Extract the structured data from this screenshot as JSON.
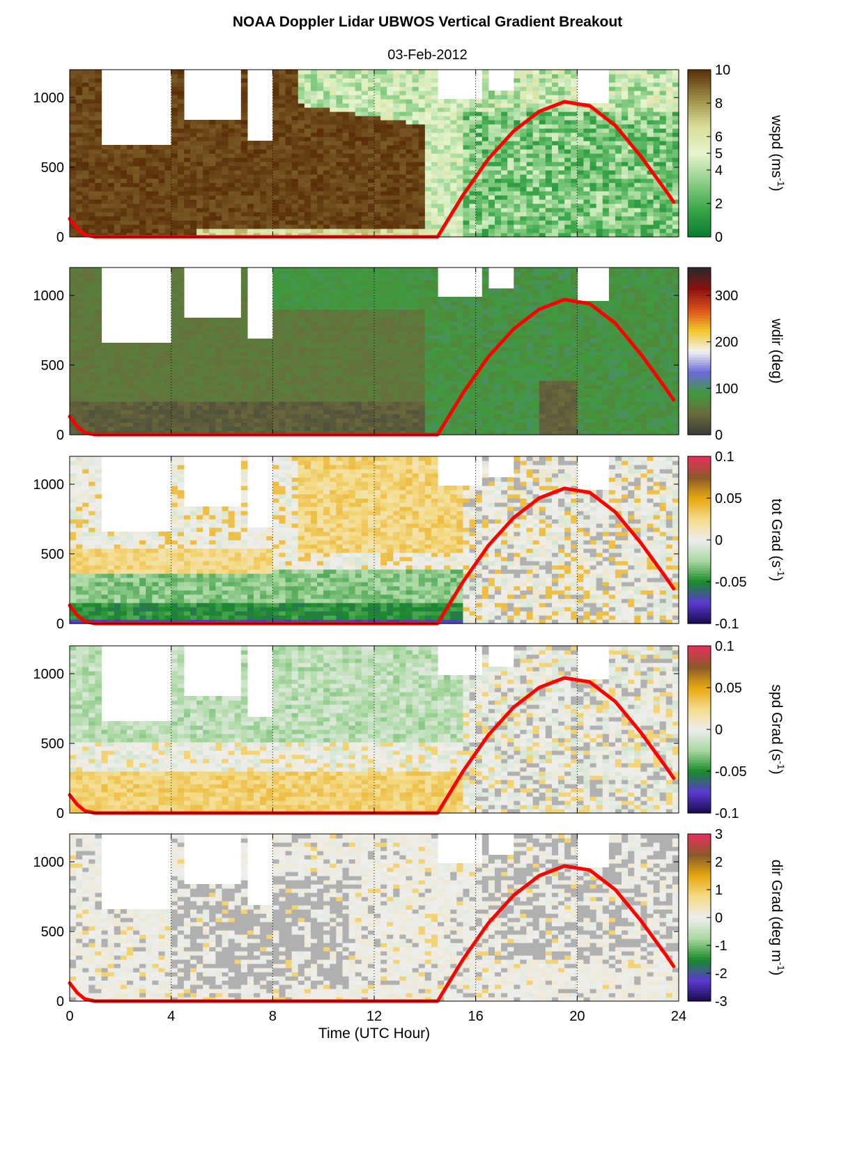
{
  "figure": {
    "title": "NOAA Doppler Lidar  UBWOS  Vertical Gradient Breakout",
    "subtitle": "03-Feb-2012",
    "xlabel": "Time (UTC Hour)"
  },
  "chart_data": [
    {
      "type": "heatmap",
      "id": "wspd",
      "colorbar_label": "wspd (ms",
      "colorbar_label_sup": "-1",
      "colorbar_label_suffix": ")",
      "x_range": [
        0,
        24
      ],
      "y_range": [
        0,
        1200
      ],
      "x_ticks": [
        0,
        4,
        8,
        12,
        16,
        20,
        24
      ],
      "y_ticks": [
        0,
        500,
        1000
      ],
      "clim": [
        0,
        10
      ],
      "colorbar_ticks": [
        0,
        2,
        4,
        5,
        6,
        8,
        10
      ],
      "colormap": [
        "#0a7a2e",
        "#3aa649",
        "#8fd08a",
        "#e6f5cf",
        "#d8dc96",
        "#9a8a45",
        "#5a2e08"
      ],
      "summary": "Strong winds (~10 m/s) below ~900 m from 0-14 UTC; weaker winds (2-6 m/s) after 14 UTC; lighter speeds near the surface 5-14 UTC",
      "sun_curve": {
        "x": [
          0,
          0.3,
          0.6,
          1,
          14.5,
          15.5,
          16.5,
          17.5,
          18.5,
          19.5,
          20.5,
          21.5,
          22.5,
          23.5,
          23.8
        ],
        "y": [
          130,
          60,
          15,
          0,
          0,
          300,
          560,
          760,
          900,
          970,
          940,
          800,
          580,
          330,
          250
        ]
      }
    },
    {
      "type": "heatmap",
      "id": "wdir",
      "colorbar_label": "wdir (deg)",
      "x_range": [
        0,
        24
      ],
      "y_range": [
        0,
        1200
      ],
      "x_ticks": [
        0,
        4,
        8,
        12,
        16,
        20,
        24
      ],
      "y_ticks": [
        0,
        500,
        1000
      ],
      "clim": [
        0,
        360
      ],
      "colorbar_ticks": [
        0,
        100,
        200,
        300
      ],
      "colormap": [
        "#3a3a3a",
        "#6b6a3c",
        "#3f9a3c",
        "#6a6ad8",
        "#f2f2f2",
        "#f2c62a",
        "#d8501a",
        "#8a1010",
        "#2a2a2a"
      ],
      "summary": "Olive/brown (~50 deg) dominant; green (~80-100 deg) aloft and after 14 UTC; darker near surface",
      "sun_curve": {
        "x": [
          0,
          0.3,
          0.6,
          1,
          14.5,
          15.5,
          16.5,
          17.5,
          18.5,
          19.5,
          20.5,
          21.5,
          22.5,
          23.5,
          23.8
        ],
        "y": [
          130,
          60,
          15,
          0,
          0,
          300,
          560,
          760,
          900,
          970,
          940,
          800,
          580,
          330,
          250
        ]
      }
    },
    {
      "type": "heatmap",
      "id": "totgrad",
      "colorbar_label": "tot Grad (s",
      "colorbar_label_sup": "-1",
      "colorbar_label_suffix": ")",
      "x_range": [
        0,
        24
      ],
      "y_range": [
        0,
        1200
      ],
      "x_ticks": [
        0,
        4,
        8,
        12,
        16,
        20,
        24
      ],
      "y_ticks": [
        0,
        500,
        1000
      ],
      "clim": [
        -0.1,
        0.1
      ],
      "colorbar_ticks": [
        -0.1,
        -0.05,
        0,
        0.05,
        0.1
      ],
      "colormap": [
        "#1a0a4a",
        "#5a3ad0",
        "#1a8a2a",
        "#a8d8a0",
        "#eeeeee",
        "#f4dc8a",
        "#e8a810",
        "#8a5a2a",
        "#e8305a"
      ],
      "summary": "Strong negative (green/blue) near surface 0-15 UTC; positive (orange) band aloft 9-15 UTC; mixed near-zero after 15 UTC",
      "sun_curve": {
        "x": [
          0,
          0.3,
          0.6,
          1,
          14.5,
          15.5,
          16.5,
          17.5,
          18.5,
          19.5,
          20.5,
          21.5,
          22.5,
          23.5,
          23.8
        ],
        "y": [
          130,
          60,
          15,
          0,
          0,
          300,
          560,
          760,
          900,
          970,
          940,
          800,
          580,
          330,
          250
        ]
      }
    },
    {
      "type": "heatmap",
      "id": "spdgrad",
      "colorbar_label": "spd Grad (s",
      "colorbar_label_sup": "-1",
      "colorbar_label_suffix": ")",
      "x_range": [
        0,
        24
      ],
      "y_range": [
        0,
        1200
      ],
      "x_ticks": [
        0,
        4,
        8,
        12,
        16,
        20,
        24
      ],
      "y_ticks": [
        0,
        500,
        1000
      ],
      "clim": [
        -0.1,
        0.1
      ],
      "colorbar_ticks": [
        -0.1,
        -0.05,
        0,
        0.05,
        0.1
      ],
      "colormap": [
        "#1a0a4a",
        "#5a3ad0",
        "#1a8a2a",
        "#a8d8a0",
        "#eeeeee",
        "#f4dc8a",
        "#e8a810",
        "#8a5a2a",
        "#e8305a"
      ],
      "summary": "Positive (orange) near surface 0-15 UTC; negative (green) aloft 0-16 UTC; mixed near-zero after 16 UTC",
      "sun_curve": {
        "x": [
          0,
          0.3,
          0.6,
          1,
          14.5,
          15.5,
          16.5,
          17.5,
          18.5,
          19.5,
          20.5,
          21.5,
          22.5,
          23.5,
          23.8
        ],
        "y": [
          130,
          60,
          15,
          0,
          0,
          300,
          560,
          760,
          900,
          970,
          940,
          800,
          580,
          330,
          250
        ]
      }
    },
    {
      "type": "heatmap",
      "id": "dirgrad",
      "colorbar_label": "dir Grad (deg m",
      "colorbar_label_sup": "-1",
      "colorbar_label_suffix": ")",
      "x_range": [
        0,
        24
      ],
      "y_range": [
        0,
        1200
      ],
      "x_ticks": [
        0,
        4,
        8,
        12,
        16,
        20,
        24
      ],
      "y_ticks": [
        0,
        500,
        1000
      ],
      "clim": [
        -3,
        3
      ],
      "colorbar_ticks": [
        -3,
        -2,
        -1,
        0,
        1,
        2,
        3
      ],
      "colormap": [
        "#1a0a4a",
        "#5a3ad0",
        "#1a8a2a",
        "#a8d8a0",
        "#eeeeee",
        "#f4dc8a",
        "#e8a810",
        "#8a5a2a",
        "#e8305a"
      ],
      "summary": "Mostly near-zero (pale) with grey patches; few positive (yellow) cells",
      "sun_curve": {
        "x": [
          0,
          0.3,
          0.6,
          1,
          14.5,
          15.5,
          16.5,
          17.5,
          18.5,
          19.5,
          20.5,
          21.5,
          22.5,
          23.5,
          23.8
        ],
        "y": [
          130,
          60,
          15,
          0,
          0,
          300,
          560,
          760,
          900,
          970,
          940,
          800,
          580,
          330,
          250
        ]
      }
    }
  ]
}
